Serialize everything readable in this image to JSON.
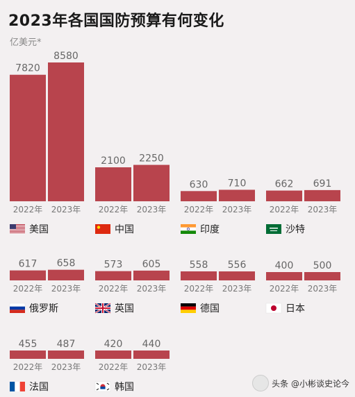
{
  "title": "2023年各国国防预算有何变化",
  "unit": "亿美元*",
  "watermark": "头条 @小彬谈史论今",
  "colors": {
    "bar": "#b8444d",
    "year_label": "#777777",
    "value_label": "#666666",
    "country_label": "#222222"
  },
  "chart_data": {
    "type": "bar",
    "title": "2023年各国国防预算有何变化",
    "unit": "亿美元*",
    "categories": [
      "2022年",
      "2023年"
    ],
    "ylim": [
      0,
      8580
    ],
    "panels": [
      {
        "country": "美国",
        "flag": "us-flag",
        "values": [
          7820,
          8580
        ]
      },
      {
        "country": "中国",
        "flag": "cn-flag",
        "values": [
          2100,
          2250
        ]
      },
      {
        "country": "印度",
        "flag": "in-flag",
        "values": [
          630,
          710
        ]
      },
      {
        "country": "沙特",
        "flag": "sa-flag",
        "values": [
          662,
          691
        ]
      },
      {
        "country": "俄罗斯",
        "flag": "ru-flag",
        "values": [
          617,
          658
        ]
      },
      {
        "country": "英国",
        "flag": "uk-flag",
        "values": [
          573,
          605
        ]
      },
      {
        "country": "德国",
        "flag": "de-flag",
        "values": [
          558,
          556
        ]
      },
      {
        "country": "日本",
        "flag": "jp-flag",
        "values": [
          400,
          500
        ]
      },
      {
        "country": "法国",
        "flag": "fr-flag",
        "values": [
          455,
          487
        ]
      },
      {
        "country": "韩国",
        "flag": "kr-flag",
        "values": [
          420,
          440
        ]
      }
    ]
  }
}
